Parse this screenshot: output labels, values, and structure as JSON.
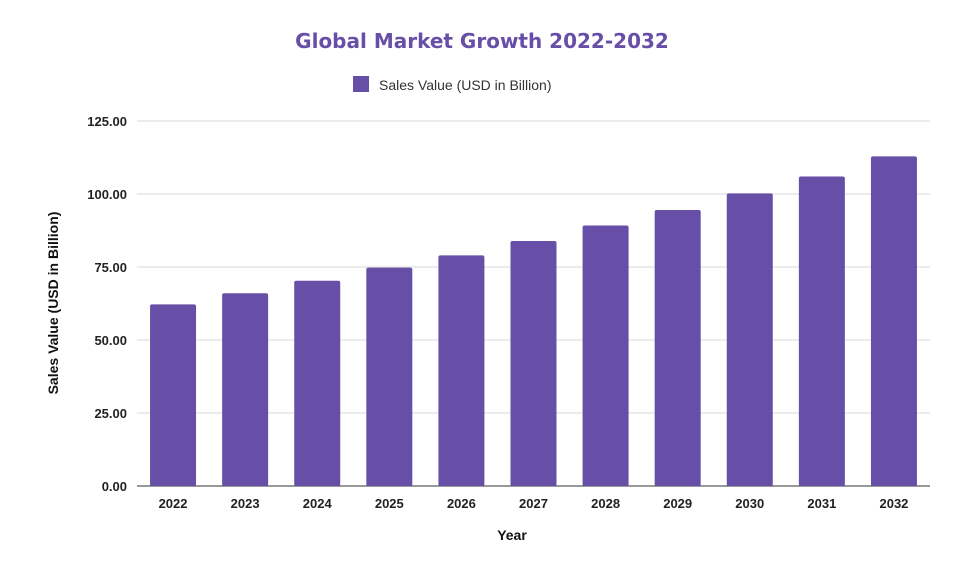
{
  "chart_data": {
    "type": "bar",
    "title": "Global Market Growth 2022-2032",
    "xlabel": "Year",
    "ylabel": "Sales Value (USD in Billion)",
    "legend": {
      "position": "top",
      "entries": [
        "Sales Value (USD in Billion)"
      ]
    },
    "categories": [
      "2022",
      "2023",
      "2024",
      "2025",
      "2026",
      "2027",
      "2028",
      "2029",
      "2030",
      "2031",
      "2032"
    ],
    "series": [
      {
        "name": "Sales Value (USD in Billion)",
        "values": [
          62.2,
          66.0,
          70.3,
          74.8,
          79.0,
          83.9,
          89.2,
          94.5,
          100.2,
          106.0,
          112.9
        ]
      }
    ],
    "ylim": [
      0,
      125
    ],
    "yticks": [
      "0.00",
      "25.00",
      "50.00",
      "75.00",
      "100.00",
      "125.00"
    ],
    "grid": true,
    "colors": {
      "bar": "#674ea7",
      "title": "#674ea7",
      "grid": "#d9d9d9"
    }
  }
}
